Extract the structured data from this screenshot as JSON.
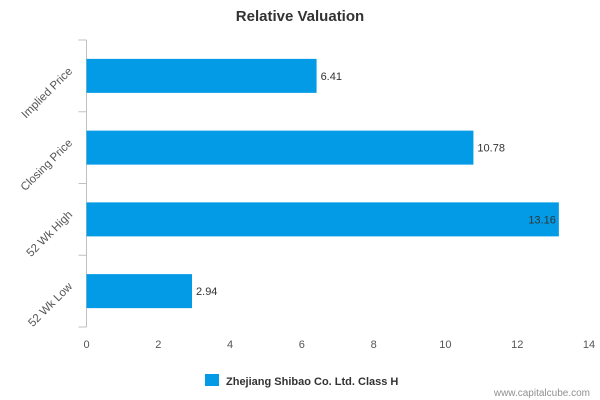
{
  "chart_data": {
    "type": "bar",
    "orientation": "horizontal",
    "title": "Relative Valuation",
    "categories": [
      "Implied Price",
      "Closing Price",
      "52 Wk High",
      "52 Wk Low"
    ],
    "series": [
      {
        "name": "Zhejiang Shibao Co. Ltd. Class H",
        "values": [
          6.41,
          10.78,
          13.16,
          2.94
        ],
        "color": "#039be5"
      }
    ],
    "data_labels": [
      "6.41",
      "10.78",
      "13.16",
      "2.94"
    ],
    "xlabel": "",
    "ylabel": "",
    "xlim": [
      0,
      14
    ],
    "x_ticks": [
      0,
      2,
      4,
      6,
      8,
      10,
      12,
      14
    ],
    "grid": false,
    "legend_position": "bottom-center"
  },
  "credit": "www.capitalcube.com"
}
